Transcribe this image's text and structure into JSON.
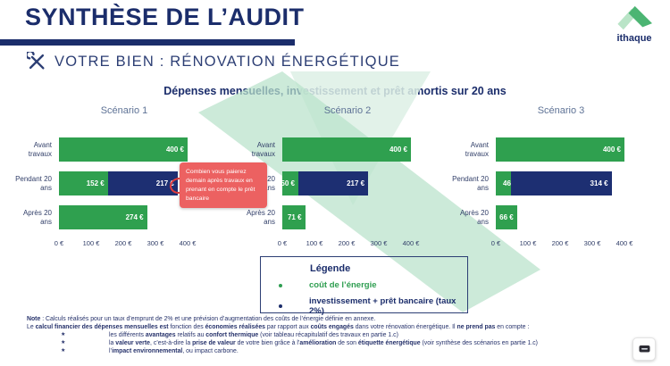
{
  "colors": {
    "navy": "#1b2d6b",
    "bar_energy": "#2fa04f",
    "bar_loan": "#1d2f72",
    "legend_energy_text": "#2f9e51",
    "legend_loan_text": "#1b2d6b",
    "tooltip_bg": "#ec6161",
    "annotation_red": "#e23d3d",
    "watermark_green": "#bfe3cf"
  },
  "header": {
    "title": "SYNTHÈSE DE L’AUDIT",
    "logo_text": "ithaque"
  },
  "subheader": {
    "title": "VOTRE BIEN : RÉNOVATION ÉNERGÉTIQUE",
    "icon": "tools-icon"
  },
  "chart": {
    "title": "Dépenses mensuelles, investissement et prêt amortis sur 20 ans",
    "axis_ticks": [
      "0 €",
      "100 €",
      "200 €",
      "300 €",
      "400 €"
    ],
    "tick_values": [
      0,
      100,
      200,
      300,
      400
    ]
  },
  "chart_data": {
    "type": "bar",
    "orientation": "horizontal",
    "xlim": [
      0,
      400
    ],
    "grid": false,
    "series": [
      {
        "id": "energy",
        "name": "coût de l’énergie"
      },
      {
        "id": "loan",
        "name": "investissement + prêt bancaire (taux 2%)"
      }
    ],
    "panels": [
      {
        "title": "Scénario 1",
        "rows": [
          {
            "label_lines": [
              "Avant",
              "travaux"
            ],
            "segments": [
              {
                "series": "energy",
                "value": 400,
                "text": "400 €"
              }
            ]
          },
          {
            "label_lines": [
              "Pendant 20",
              "ans"
            ],
            "segments": [
              {
                "series": "energy",
                "value": 152,
                "text": "152 €"
              },
              {
                "series": "loan",
                "value": 217,
                "text": "217 €",
                "annotated": true
              }
            ]
          },
          {
            "label_lines": [
              "Après 20",
              "ans"
            ],
            "segments": [
              {
                "series": "energy",
                "value": 274,
                "text": "274 €"
              }
            ]
          }
        ]
      },
      {
        "title": "Scénario 2",
        "rows": [
          {
            "label_lines": [
              "Avant",
              "travaux"
            ],
            "segments": [
              {
                "series": "energy",
                "value": 400,
                "text": "400 €"
              }
            ]
          },
          {
            "label_lines": [
              "Pendant 20",
              "ans"
            ],
            "segments": [
              {
                "series": "energy",
                "value": 50,
                "text": "50 €"
              },
              {
                "series": "loan",
                "value": 217,
                "text": "217 €"
              }
            ]
          },
          {
            "label_lines": [
              "Après 20",
              "ans"
            ],
            "segments": [
              {
                "series": "energy",
                "value": 71,
                "text": "71 €"
              }
            ]
          }
        ]
      },
      {
        "title": "Scénario 3",
        "rows": [
          {
            "label_lines": [
              "Avant",
              "travaux"
            ],
            "segments": [
              {
                "series": "energy",
                "value": 400,
                "text": "400 €"
              }
            ]
          },
          {
            "label_lines": [
              "Pendant 20",
              "ans"
            ],
            "segments": [
              {
                "series": "energy",
                "value": 46,
                "text": "46 €",
                "overflow": true
              },
              {
                "series": "loan",
                "value": 314,
                "text": "314 €"
              }
            ]
          },
          {
            "label_lines": [
              "Après 20",
              "ans"
            ],
            "segments": [
              {
                "series": "energy",
                "value": 66,
                "text": "66 €"
              }
            ]
          }
        ]
      }
    ]
  },
  "legend": {
    "title": "Légende",
    "items": [
      {
        "text": "coût de l’énergie",
        "series": "energy"
      },
      {
        "text": "investissement + prêt bancaire (taux 2%)",
        "series": "loan"
      }
    ]
  },
  "tooltip": {
    "text": "Combien vous paierez demain après travaux en prenant en compte le prêt bancaire"
  },
  "footnote": {
    "bullet_glyph": "★",
    "line1": [
      {
        "t": "Note",
        "b": 1
      },
      {
        "t": " : Calculs réalisés pour un taux d’emprunt  de 2% et une prévision d’augmentation des coûts de l’énergie définie en annexe.",
        "b": 0
      }
    ],
    "line2": [
      {
        "t": "Le ",
        "b": 0
      },
      {
        "t": "calcul financier des dépenses mensuelles est",
        "b": 1
      },
      {
        "t": " fonction des ",
        "b": 0
      },
      {
        "t": "économies réalisées",
        "b": 1
      },
      {
        "t": " par rapport aux ",
        "b": 0
      },
      {
        "t": "coûts engagés",
        "b": 1
      },
      {
        "t": " dans votre rénovation énergétique. Il ",
        "b": 0
      },
      {
        "t": "ne prend pas",
        "b": 1
      },
      {
        "t": " en compte :",
        "b": 0
      }
    ],
    "bullets": [
      [
        {
          "t": "les différents ",
          "b": 0
        },
        {
          "t": "avantages",
          "b": 1
        },
        {
          "t": " relatifs au ",
          "b": 0
        },
        {
          "t": "confort thermique",
          "b": 1
        },
        {
          "t": " (voir tableau récapitulatif des travaux en partie 1.c)",
          "b": 0
        }
      ],
      [
        {
          "t": "la ",
          "b": 0
        },
        {
          "t": "valeur verte",
          "b": 1
        },
        {
          "t": ", c’est-à-dire la ",
          "b": 0
        },
        {
          "t": "prise de valeur",
          "b": 1
        },
        {
          "t": " de votre bien grâce à l’",
          "b": 0
        },
        {
          "t": "amélioration",
          "b": 1
        },
        {
          "t": " de son ",
          "b": 0
        },
        {
          "t": "étiquette énergétique",
          "b": 1
        },
        {
          "t": " (voir synthèse des scénarios en partie 1.c)",
          "b": 0
        }
      ],
      [
        {
          "t": "l’",
          "b": 0
        },
        {
          "t": "impact environnemental",
          "b": 1
        },
        {
          "t": ", ou impact carbone.",
          "b": 0
        }
      ]
    ]
  }
}
